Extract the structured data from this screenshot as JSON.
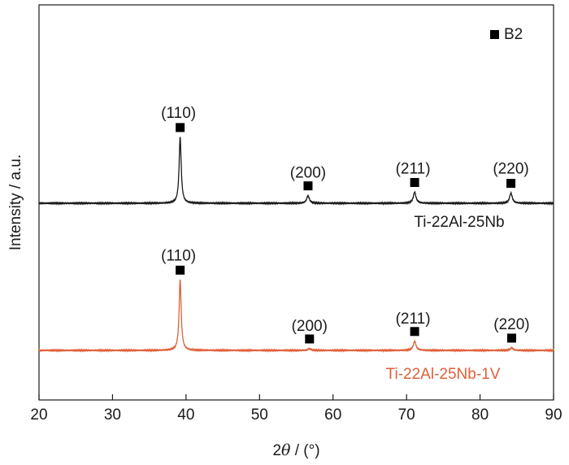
{
  "chart_data": {
    "type": "line",
    "xlabel_prefix": "2",
    "xlabel_symbol": "θ",
    "xlabel_suffix": " / (°)",
    "ylabel": "Intensity / a.u.",
    "xlim": [
      20,
      90
    ],
    "x_ticks": [
      20,
      30,
      40,
      50,
      60,
      70,
      80,
      90
    ],
    "y_ticks_shown": false,
    "grid": false,
    "legend": {
      "marker": "square",
      "label": "B2",
      "placement": "top-right"
    },
    "series": [
      {
        "name": "Ti-22Al-25Nb",
        "color": "#1a1a1a",
        "peaks": [
          {
            "hkl": "(110)",
            "two_theta": 39.2,
            "height": 0.78
          },
          {
            "hkl": "(200)",
            "two_theta": 56.6,
            "height": 0.09
          },
          {
            "hkl": "(211)",
            "two_theta": 71.1,
            "height": 0.13
          },
          {
            "hkl": "(220)",
            "two_theta": 84.2,
            "height": 0.12
          }
        ]
      },
      {
        "name": "Ti-22Al-25Nb-1V",
        "color": "#e0603a",
        "peaks": [
          {
            "hkl": "(110)",
            "two_theta": 39.2,
            "height": 0.85
          },
          {
            "hkl": "(200)",
            "two_theta": 56.8,
            "height": 0.02
          },
          {
            "hkl": "(211)",
            "two_theta": 71.1,
            "height": 0.11
          },
          {
            "hkl": "(220)",
            "two_theta": 84.3,
            "height": 0.03
          }
        ]
      }
    ]
  }
}
